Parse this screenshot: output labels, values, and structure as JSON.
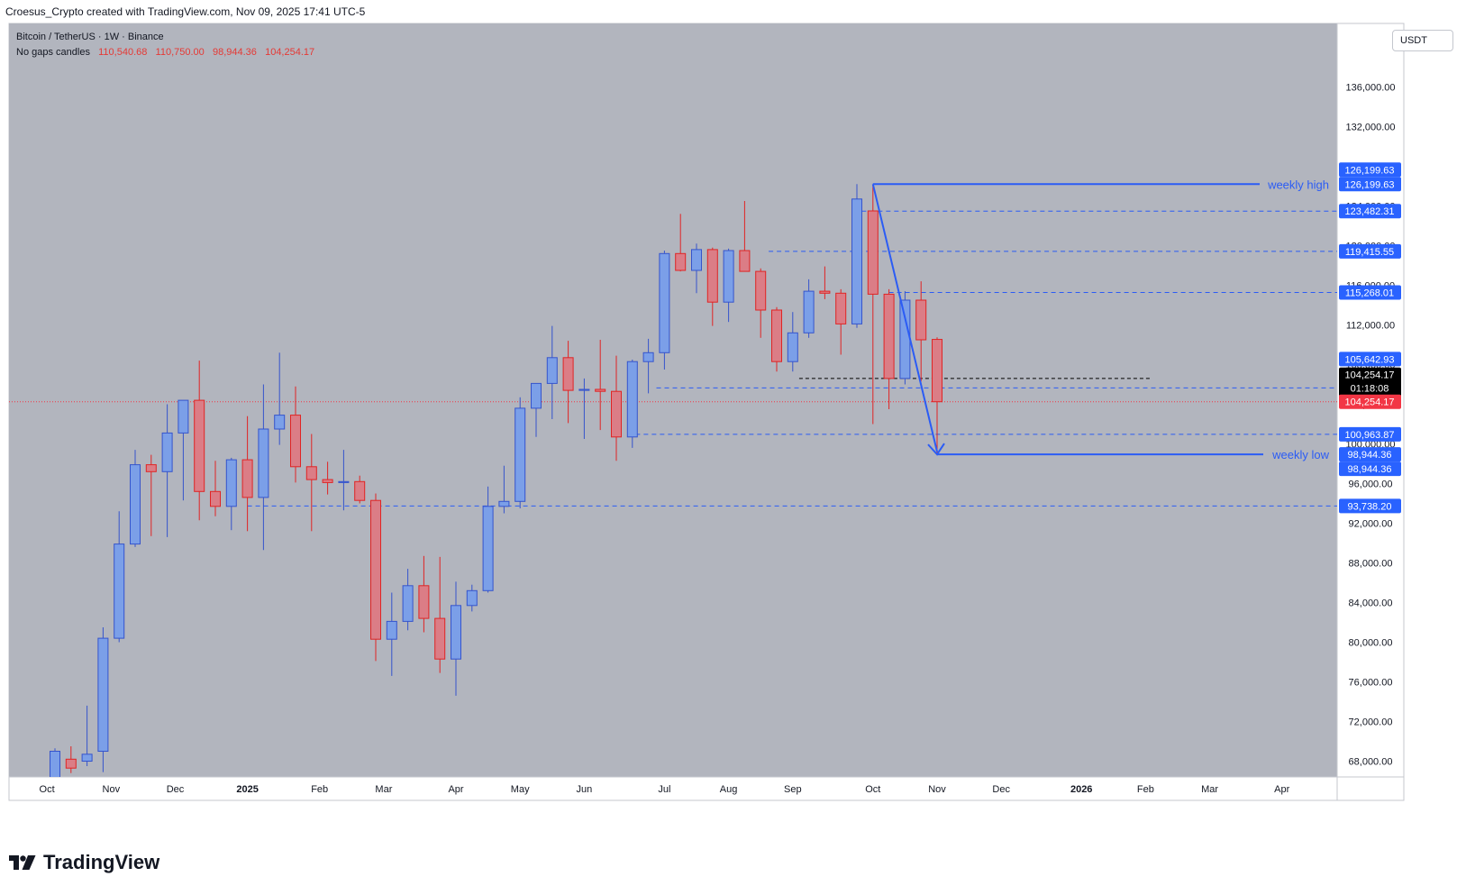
{
  "header": {
    "attribution": "Croesus_Crypto created with TradingView.com, Nov 09, 2025 17:41 UTC-5"
  },
  "legend": {
    "symbol_line": "Bitcoin / TetherUS · 1W · Binance",
    "candle_label": "No gaps candles",
    "ohlc": [
      "110,540.68",
      "110,750.00",
      "98,944.36",
      "104,254.17"
    ]
  },
  "currency_button": "USDT",
  "brand": {
    "name": "TradingView"
  },
  "colors": {
    "background": "#b2b5be",
    "bull_fill": "#7b9fe8",
    "bull_border": "#3554cc",
    "bear_fill": "#db7d86",
    "bear_border": "#e02424",
    "line": "#2b5cf5",
    "badge_blue": "#2962ff",
    "badge_red": "#f23645",
    "badge_black": "#000000"
  },
  "chart_data": {
    "type": "candlestick",
    "timeframe": "1W",
    "ylim": [
      66000,
      140000
    ],
    "y_ticks": [
      {
        "value": 68000,
        "label": "68,000.00"
      },
      {
        "value": 72000,
        "label": "72,000.00"
      },
      {
        "value": 76000,
        "label": "76,000.00"
      },
      {
        "value": 80000,
        "label": "80,000.00"
      },
      {
        "value": 84000,
        "label": "84,000.00"
      },
      {
        "value": 88000,
        "label": "88,000.00"
      },
      {
        "value": 92000,
        "label": "92,000.00"
      },
      {
        "value": 96000,
        "label": "96,000.00"
      },
      {
        "value": 100000,
        "label": "100,000.00"
      },
      {
        "value": 104000,
        "label": "104,000.00"
      },
      {
        "value": 108000,
        "label": "108,000.00"
      },
      {
        "value": 112000,
        "label": "112,000.00"
      },
      {
        "value": 116000,
        "label": "116,000.00"
      },
      {
        "value": 120000,
        "label": "120,000.00"
      },
      {
        "value": 124000,
        "label": "124,000.00"
      },
      {
        "value": 128000,
        "label": "128,000.00"
      },
      {
        "value": 132000,
        "label": "132,000.00"
      },
      {
        "value": 136000,
        "label": "136,000.00"
      }
    ],
    "x_labels": [
      {
        "label": "Oct",
        "week": -0.5,
        "bold": false
      },
      {
        "label": "Nov",
        "week": 3.5,
        "bold": false
      },
      {
        "label": "Dec",
        "week": 7.5,
        "bold": false
      },
      {
        "label": "2025",
        "week": 12,
        "bold": true
      },
      {
        "label": "Feb",
        "week": 16.5,
        "bold": false
      },
      {
        "label": "Mar",
        "week": 20.5,
        "bold": false
      },
      {
        "label": "Apr",
        "week": 25,
        "bold": false
      },
      {
        "label": "May",
        "week": 29,
        "bold": false
      },
      {
        "label": "Jun",
        "week": 33,
        "bold": false
      },
      {
        "label": "Jul",
        "week": 38,
        "bold": false
      },
      {
        "label": "Aug",
        "week": 42,
        "bold": false
      },
      {
        "label": "Sep",
        "week": 46,
        "bold": false
      },
      {
        "label": "Oct",
        "week": 51,
        "bold": false
      },
      {
        "label": "Nov",
        "week": 55,
        "bold": false
      },
      {
        "label": "Dec",
        "week": 59,
        "bold": false
      },
      {
        "label": "2026",
        "week": 64,
        "bold": true
      },
      {
        "label": "Feb",
        "week": 68,
        "bold": false
      },
      {
        "label": "Mar",
        "week": 72,
        "bold": false
      },
      {
        "label": "Apr",
        "week": 76.5,
        "bold": false
      }
    ],
    "candles": [
      {
        "o": 63300,
        "h": 69300,
        "l": 62800,
        "c": 69000
      },
      {
        "o": 68200,
        "h": 69500,
        "l": 66800,
        "c": 67300
      },
      {
        "o": 68000,
        "h": 73600,
        "l": 67500,
        "c": 68700
      },
      {
        "o": 69000,
        "h": 81500,
        "l": 66900,
        "c": 80400
      },
      {
        "o": 80400,
        "h": 93200,
        "l": 80000,
        "c": 89900
      },
      {
        "o": 89900,
        "h": 99400,
        "l": 89600,
        "c": 97900
      },
      {
        "o": 97900,
        "h": 98900,
        "l": 90700,
        "c": 97200
      },
      {
        "o": 97200,
        "h": 104000,
        "l": 90600,
        "c": 101100
      },
      {
        "o": 101100,
        "h": 104100,
        "l": 94300,
        "c": 104400
      },
      {
        "o": 104400,
        "h": 108400,
        "l": 92300,
        "c": 95200
      },
      {
        "o": 95200,
        "h": 98300,
        "l": 92700,
        "c": 93700
      },
      {
        "o": 93700,
        "h": 98600,
        "l": 91300,
        "c": 98400
      },
      {
        "o": 98400,
        "h": 102800,
        "l": 91200,
        "c": 94600
      },
      {
        "o": 94600,
        "h": 106000,
        "l": 89300,
        "c": 101500
      },
      {
        "o": 101500,
        "h": 109200,
        "l": 99900,
        "c": 102900
      },
      {
        "o": 102900,
        "h": 105800,
        "l": 96100,
        "c": 97700
      },
      {
        "o": 97700,
        "h": 101000,
        "l": 91200,
        "c": 96400
      },
      {
        "o": 96400,
        "h": 98200,
        "l": 94900,
        "c": 96100
      },
      {
        "o": 96100,
        "h": 99400,
        "l": 93300,
        "c": 96200
      },
      {
        "o": 96200,
        "h": 96800,
        "l": 94000,
        "c": 94300
      },
      {
        "o": 94300,
        "h": 95000,
        "l": 78100,
        "c": 80300
      },
      {
        "o": 80300,
        "h": 85000,
        "l": 76600,
        "c": 82100
      },
      {
        "o": 82100,
        "h": 87400,
        "l": 81200,
        "c": 85700
      },
      {
        "o": 85700,
        "h": 88700,
        "l": 81000,
        "c": 82400
      },
      {
        "o": 82400,
        "h": 88600,
        "l": 76900,
        "c": 78300
      },
      {
        "o": 78300,
        "h": 86100,
        "l": 74600,
        "c": 83700
      },
      {
        "o": 83700,
        "h": 85800,
        "l": 83100,
        "c": 85200
      },
      {
        "o": 85200,
        "h": 95700,
        "l": 85000,
        "c": 93700
      },
      {
        "o": 93700,
        "h": 97800,
        "l": 93000,
        "c": 94200
      },
      {
        "o": 94200,
        "h": 104700,
        "l": 93500,
        "c": 103600
      },
      {
        "o": 103600,
        "h": 105900,
        "l": 100700,
        "c": 106100
      },
      {
        "o": 106100,
        "h": 111900,
        "l": 102500,
        "c": 108700
      },
      {
        "o": 108700,
        "h": 110400,
        "l": 102100,
        "c": 105400
      },
      {
        "o": 105400,
        "h": 106600,
        "l": 100500,
        "c": 105500
      },
      {
        "o": 105500,
        "h": 110500,
        "l": 101400,
        "c": 105300
      },
      {
        "o": 105300,
        "h": 108900,
        "l": 98300,
        "c": 100700
      },
      {
        "o": 100700,
        "h": 108500,
        "l": 99600,
        "c": 108300
      },
      {
        "o": 108300,
        "h": 110600,
        "l": 105100,
        "c": 109200
      },
      {
        "o": 109200,
        "h": 119500,
        "l": 107500,
        "c": 119200
      },
      {
        "o": 119200,
        "h": 123200,
        "l": 117400,
        "c": 117500
      },
      {
        "o": 117500,
        "h": 120200,
        "l": 115200,
        "c": 119600
      },
      {
        "o": 119600,
        "h": 119800,
        "l": 111900,
        "c": 114300
      },
      {
        "o": 114300,
        "h": 119700,
        "l": 112300,
        "c": 119500
      },
      {
        "o": 119500,
        "h": 124500,
        "l": 117500,
        "c": 117400
      },
      {
        "o": 117400,
        "h": 117700,
        "l": 110700,
        "c": 113500
      },
      {
        "o": 113500,
        "h": 113800,
        "l": 107300,
        "c": 108300
      },
      {
        "o": 108300,
        "h": 113300,
        "l": 107300,
        "c": 111200
      },
      {
        "o": 111200,
        "h": 116600,
        "l": 110700,
        "c": 115400
      },
      {
        "o": 115400,
        "h": 117900,
        "l": 114600,
        "c": 115200
      },
      {
        "o": 115200,
        "h": 115600,
        "l": 109000,
        "c": 112100
      },
      {
        "o": 112100,
        "h": 126200,
        "l": 111700,
        "c": 124700
      },
      {
        "o": 123500,
        "h": 126100,
        "l": 102000,
        "c": 115100
      },
      {
        "o": 115100,
        "h": 115600,
        "l": 103500,
        "c": 106600
      },
      {
        "o": 106600,
        "h": 115400,
        "l": 106000,
        "c": 114500
      },
      {
        "o": 114500,
        "h": 116400,
        "l": 106300,
        "c": 110500
      },
      {
        "o": 110540.68,
        "h": 110750,
        "l": 98944.36,
        "c": 104254.17
      }
    ],
    "annotations": {
      "weekly_high": {
        "label": "weekly high",
        "value": 126199.63
      },
      "weekly_low": {
        "label": "weekly low",
        "value": 98944.36
      },
      "dashed_levels": [
        123482.31,
        119415.55,
        115268.01,
        105642.93,
        100963.87,
        93738.2
      ],
      "support_line": 106600
    },
    "price_badges": [
      {
        "text": "126,199.63",
        "value": 126199.63,
        "color": "#2962ff",
        "offset": -16
      },
      {
        "text": "126,199.63",
        "value": 126199.63,
        "color": "#2962ff",
        "offset": 0
      },
      {
        "text": "123,482.31",
        "value": 123482.31,
        "color": "#2962ff",
        "offset": 0
      },
      {
        "text": "119,415.55",
        "value": 119415.55,
        "color": "#2962ff",
        "offset": 0
      },
      {
        "text": "115,268.01",
        "value": 115268.01,
        "color": "#2962ff",
        "offset": 0
      },
      {
        "text": "105,642.93",
        "value": 105642.93,
        "color": "#2962ff",
        "offset": -32
      },
      {
        "text": "104,254.17",
        "value": 104254.17,
        "color": "#000000",
        "offset": -30,
        "extra": "01:18:08"
      },
      {
        "text": "104,254.17",
        "value": 104254.17,
        "color": "#f23645",
        "offset": 0
      },
      {
        "text": "100,963.87",
        "value": 100963.87,
        "color": "#2962ff",
        "offset": 0
      },
      {
        "text": "98,944.36",
        "value": 98944.36,
        "color": "#2962ff",
        "offset": 0
      },
      {
        "text": "98,944.36",
        "value": 98944.36,
        "color": "#2962ff",
        "offset": 16
      },
      {
        "text": "93,738.20",
        "value": 93738.2,
        "color": "#2962ff",
        "offset": 0
      }
    ]
  }
}
